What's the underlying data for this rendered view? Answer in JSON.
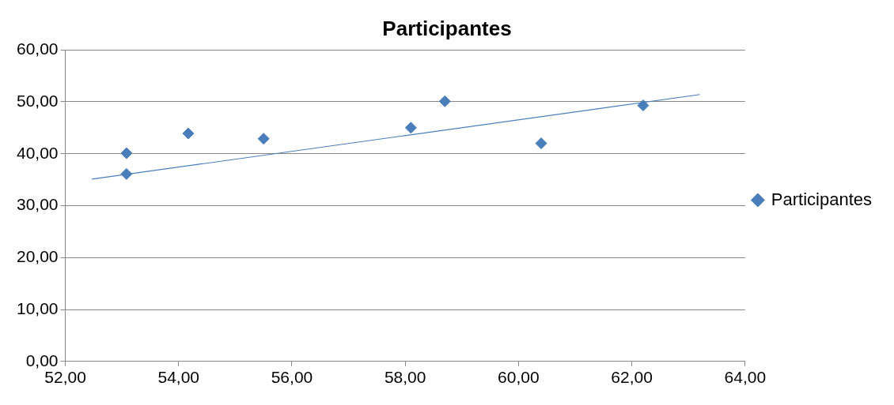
{
  "chart_data": {
    "type": "scatter",
    "title": "Participantes",
    "series": [
      {
        "name": "Participantes",
        "color": "#4a7ebb",
        "x": [
          53.08,
          53.08,
          54.17,
          55.5,
          58.1,
          58.7,
          60.4,
          62.2
        ],
        "values": [
          40.1,
          36.1,
          43.9,
          42.9,
          45.0,
          50.1,
          42.0,
          49.3
        ]
      },
      {
        "type": "line",
        "color": "#4a7ebb",
        "marker": "none",
        "x": [
          52.47,
          63.2
        ],
        "values": [
          35.1,
          51.4
        ]
      }
    ],
    "xlim": [
      52,
      64
    ],
    "xticks": [
      {
        "value": 52,
        "label": "52,00"
      },
      {
        "value": 54,
        "label": "54,00"
      },
      {
        "value": 56,
        "label": "56,00"
      },
      {
        "value": 58,
        "label": "58,00"
      },
      {
        "value": 60,
        "label": "60,00"
      },
      {
        "value": 62,
        "label": "62,00"
      },
      {
        "value": 64,
        "label": "64,00"
      }
    ],
    "ylim": [
      0,
      60
    ],
    "yticks": [
      {
        "value": 0,
        "label": "0,00"
      },
      {
        "value": 10,
        "label": "10,00"
      },
      {
        "value": 20,
        "label": "20,00"
      },
      {
        "value": 30,
        "label": "30,00"
      },
      {
        "value": 40,
        "label": "40,00"
      },
      {
        "value": 50,
        "label": "50,00"
      },
      {
        "value": 60,
        "label": "60,00"
      }
    ],
    "grid": "y",
    "legend": "right",
    "marker": "diamond"
  }
}
